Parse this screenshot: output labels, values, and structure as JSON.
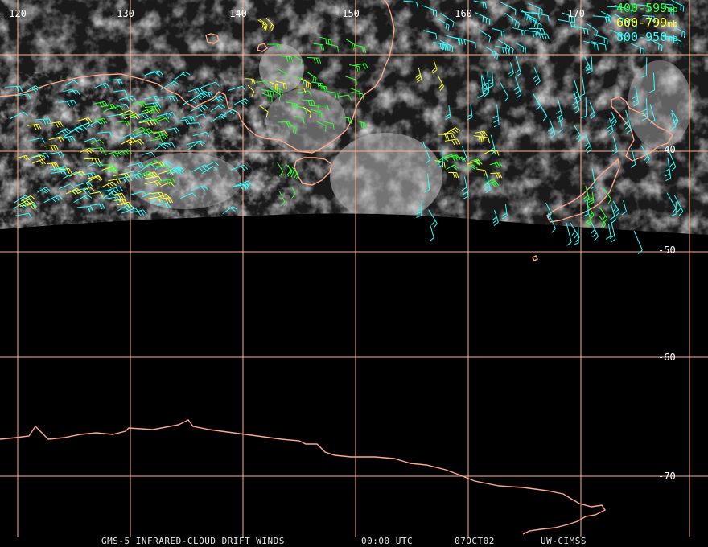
{
  "longitude_labels": [
    "-120",
    "-130",
    "-140",
    "-150",
    "-160",
    "-170"
  ],
  "latitude_labels": [
    "-40",
    "-50",
    "-60",
    "-70"
  ],
  "legend": [
    {
      "range": "400-599",
      "unit": "mb",
      "color": "#33ff33"
    },
    {
      "range": "600-799",
      "unit": "mb",
      "color": "#ffff33"
    },
    {
      "range": "800-950",
      "unit": "mb",
      "color": "#33ffff"
    }
  ],
  "footer": {
    "product": "GMS-5 INFRARED-CLOUD DRIFT WINDS",
    "time": "00:00 UTC",
    "date": "07OCT02",
    "source": "UW-CIMSS"
  },
  "colors": {
    "grid": "#ffb08c",
    "coastline": "#ffa888",
    "background": "#000000"
  }
}
